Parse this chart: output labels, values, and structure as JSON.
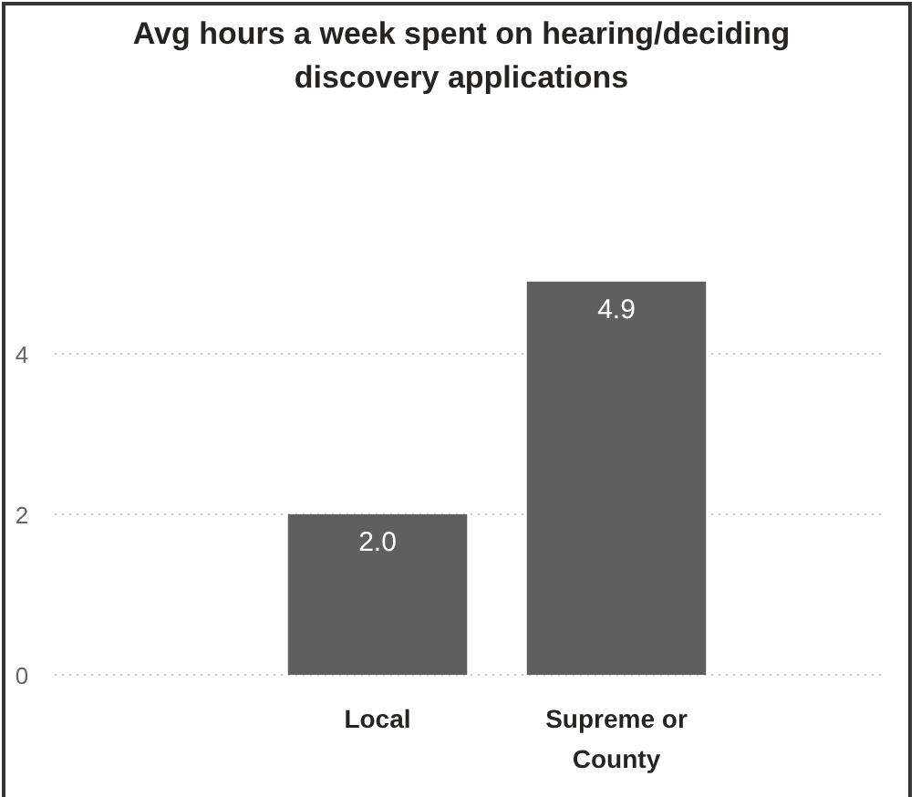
{
  "chart_data": {
    "type": "bar",
    "title": "Avg hours a week spent on hearing/deciding discovery applications",
    "categories": [
      "Local",
      "Supreme or County"
    ],
    "values": [
      2.0,
      4.9
    ],
    "value_labels": [
      "2.0",
      "4.9"
    ],
    "color": "#5f5f5f",
    "ylim": [
      0,
      4.9
    ],
    "yticks": [
      0,
      2,
      4
    ],
    "grid": "y"
  }
}
